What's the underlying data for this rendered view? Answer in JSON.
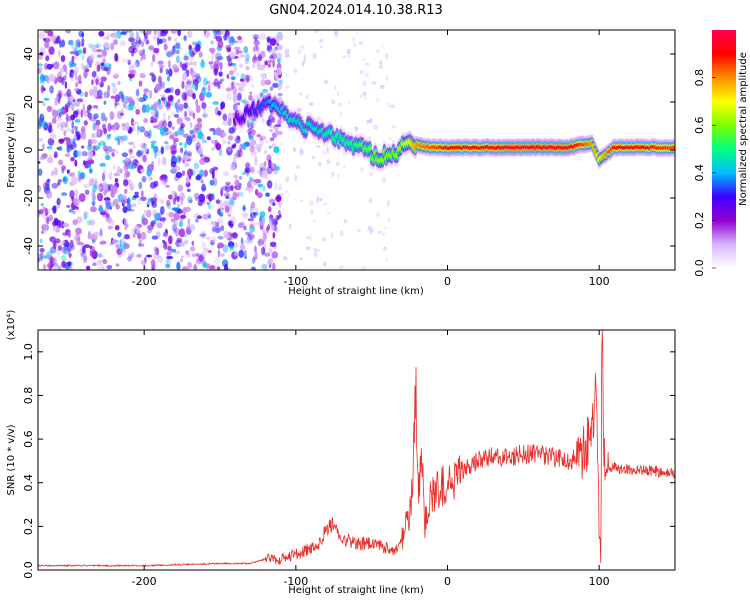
{
  "title": "GN04.2024.014.10.38.R13",
  "colors": {
    "signal_line": "#e8302a",
    "sparse_noise": "#8a2be2",
    "colorbar": [
      "#ffffff",
      "#d7b5ff",
      "#9400d3",
      "#3c00ff",
      "#00bfff",
      "#00ff7f",
      "#7fff00",
      "#ffff00",
      "#ff8c00",
      "#ff0000",
      "#ff0050"
    ]
  },
  "chart_data": [
    {
      "type": "heatmap",
      "xlabel": "Height of straight line (km)",
      "ylabel": "Frequency (Hz)",
      "xlim": [
        -270,
        150
      ],
      "ylim": [
        -50,
        50
      ],
      "x_ticks": [
        -200,
        -100,
        0,
        100
      ],
      "y_ticks": [
        -40,
        -20,
        0,
        20,
        40
      ],
      "colorbar": {
        "label": "Normalized spectral amplitude",
        "range": [
          0,
          1
        ],
        "ticks": [
          0.0,
          0.2,
          0.4,
          0.6,
          0.8
        ]
      },
      "noise_region_x": [
        -270,
        -130
      ],
      "ridge": {
        "x": [
          -140,
          -130,
          -120,
          -115,
          -105,
          -95,
          -85,
          -75,
          -65,
          -55,
          -45,
          -35,
          -28,
          -20,
          -10,
          0,
          20,
          40,
          60,
          80,
          95,
          100,
          110,
          130,
          150
        ],
        "y": [
          13,
          16,
          20,
          18,
          14,
          10,
          8,
          6,
          3,
          0,
          -3,
          -2,
          4,
          2,
          1,
          1,
          1,
          1,
          1,
          1,
          3,
          -4,
          1,
          1,
          1
        ],
        "intensity": [
          0.25,
          0.3,
          0.35,
          0.4,
          0.45,
          0.45,
          0.45,
          0.5,
          0.5,
          0.55,
          0.6,
          0.6,
          0.65,
          0.8,
          0.85,
          0.9,
          0.9,
          0.95,
          0.95,
          0.95,
          0.8,
          0.7,
          0.9,
          0.9,
          0.85
        ]
      }
    },
    {
      "type": "line",
      "xlabel": "Height of straight line (km)",
      "ylabel": "SNR (10 * v/v)",
      "y_multiplier": "(x10⁴)",
      "xlim": [
        -270,
        150
      ],
      "ylim": [
        0,
        1.1
      ],
      "x_ticks": [
        -200,
        -100,
        0,
        100
      ],
      "y_ticks": [
        0.0,
        0.2,
        0.4,
        0.6,
        0.8,
        1.0
      ],
      "series": [
        {
          "x": [
            -270,
            -250,
            -200,
            -150,
            -130,
            -120,
            -110,
            -100,
            -90,
            -85,
            -80,
            -75,
            -70,
            -60,
            -50,
            -40,
            -35,
            -30,
            -25,
            -23,
            -21,
            -19,
            -17,
            -15,
            -13,
            -10,
            -5,
            0,
            5,
            10,
            20,
            30,
            40,
            50,
            60,
            70,
            80,
            85,
            90,
            95,
            98,
            100,
            101,
            102,
            103,
            105,
            110,
            120,
            130,
            140,
            150
          ],
          "y": [
            0.02,
            0.02,
            0.02,
            0.03,
            0.03,
            0.05,
            0.05,
            0.07,
            0.1,
            0.12,
            0.18,
            0.22,
            0.15,
            0.12,
            0.12,
            0.1,
            0.08,
            0.15,
            0.25,
            0.4,
            0.85,
            0.35,
            0.6,
            0.2,
            0.3,
            0.35,
            0.38,
            0.4,
            0.42,
            0.45,
            0.5,
            0.52,
            0.52,
            0.53,
            0.53,
            0.52,
            0.5,
            0.52,
            0.55,
            0.6,
            0.8,
            0.2,
            0.1,
            1.15,
            0.55,
            0.48,
            0.47,
            0.46,
            0.46,
            0.45,
            0.44
          ]
        }
      ]
    }
  ]
}
